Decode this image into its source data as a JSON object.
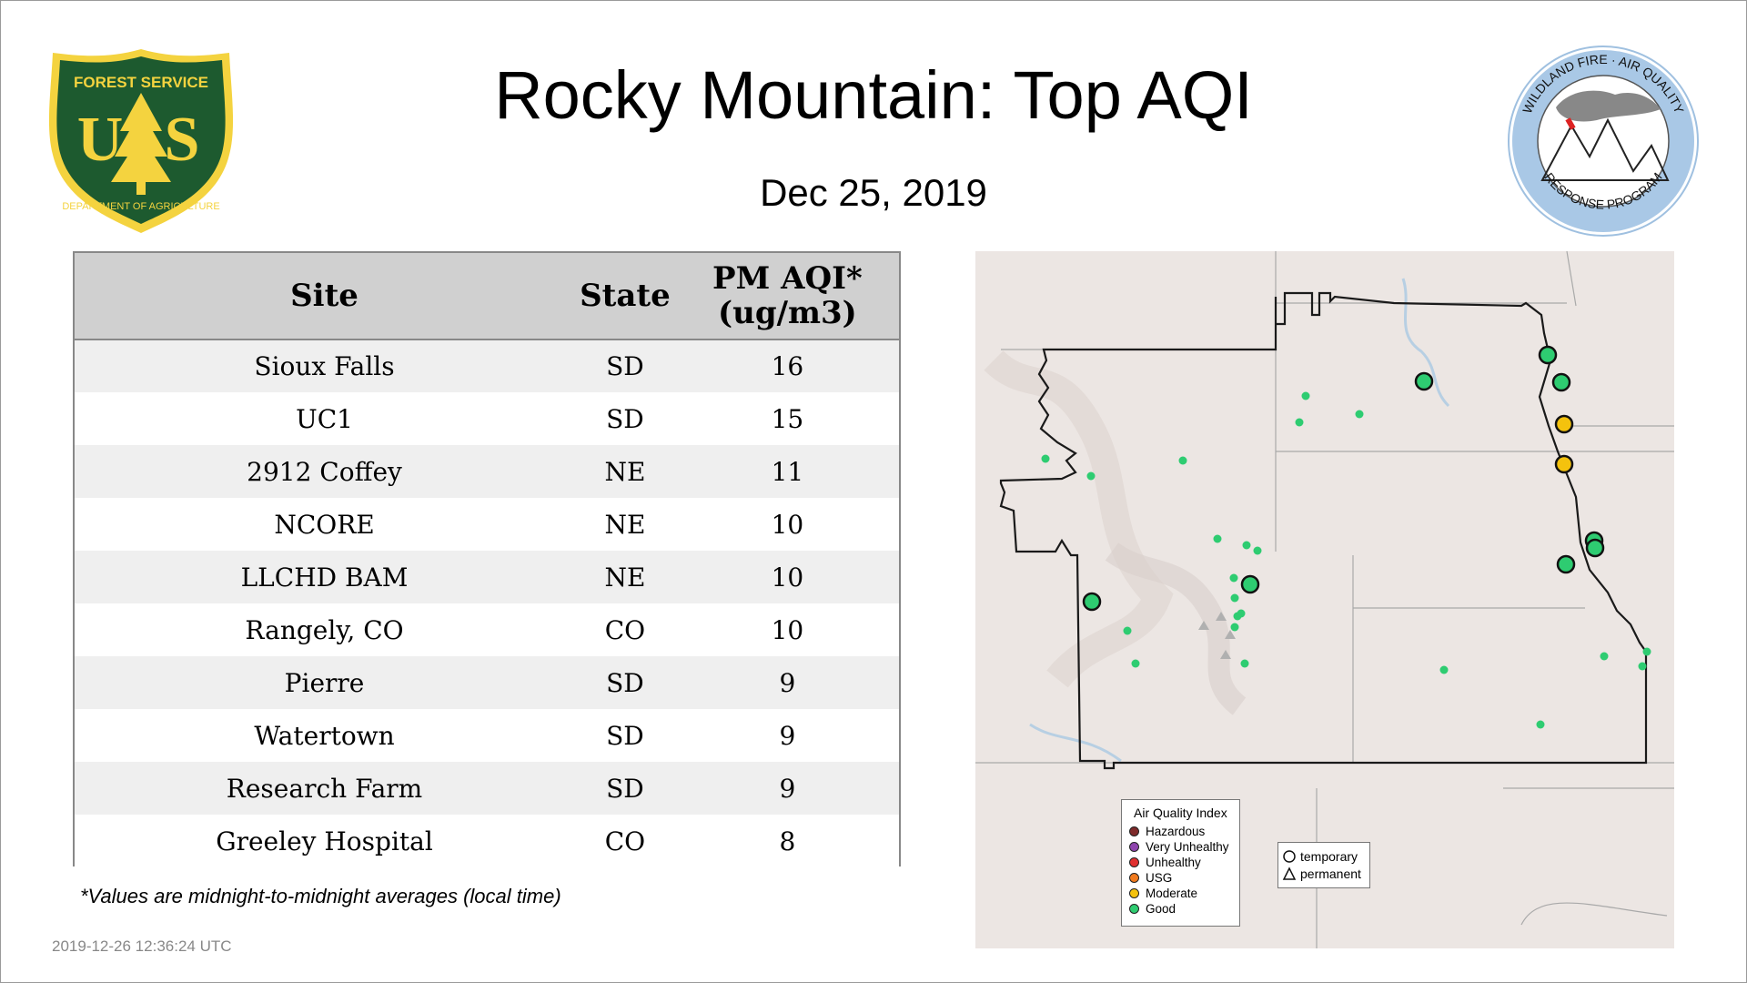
{
  "header": {
    "title": "Rocky Mountain: Top AQI",
    "date": "Dec 25, 2019",
    "left_logo": {
      "name": "forest-service-logo",
      "text_top": "FOREST SERVICE",
      "text_main": "US",
      "text_bottom": "DEPARTMENT OF AGRICULTURE"
    },
    "right_logo": {
      "name": "wildland-fire-air-quality-logo",
      "text_top": "WILDLAND FIRE · AIR QUALITY",
      "text_bottom": "RESPONSE PROGRAM"
    }
  },
  "table": {
    "headers": {
      "site": "Site",
      "state": "State",
      "aqi_line1": "PM AQI*",
      "aqi_line2": "(ug/m3)"
    },
    "rows": [
      {
        "site": "Sioux Falls",
        "state": "SD",
        "aqi": "16"
      },
      {
        "site": "UC1",
        "state": "SD",
        "aqi": "15"
      },
      {
        "site": "2912 Coffey",
        "state": "NE",
        "aqi": "11"
      },
      {
        "site": "NCORE",
        "state": "NE",
        "aqi": "10"
      },
      {
        "site": "LLCHD BAM",
        "state": "NE",
        "aqi": "10"
      },
      {
        "site": "Rangely, CO",
        "state": "CO",
        "aqi": "10"
      },
      {
        "site": "Pierre",
        "state": "SD",
        "aqi": "9"
      },
      {
        "site": "Watertown",
        "state": "SD",
        "aqi": "9"
      },
      {
        "site": "Research Farm",
        "state": "SD",
        "aqi": "9"
      },
      {
        "site": "Greeley Hospital",
        "state": "CO",
        "aqi": "8"
      }
    ]
  },
  "footnote": "*Values are midnight-to-midnight averages (local time)",
  "timestamp": "2019-12-26 12:36:24 UTC",
  "map": {
    "legend": {
      "title": "Air Quality Index",
      "items": [
        {
          "label": "Hazardous",
          "color": "#7e2a2a"
        },
        {
          "label": "Very Unhealthy",
          "color": "#8e44ad"
        },
        {
          "label": "Unhealthy",
          "color": "#e03030"
        },
        {
          "label": "USG",
          "color": "#f07a1e"
        },
        {
          "label": "Moderate",
          "color": "#f4c20d"
        },
        {
          "label": "Good",
          "color": "#2ecc71"
        }
      ]
    },
    "monitor_legend": {
      "temporary": "temporary",
      "permanent": "permanent"
    },
    "colors": {
      "good": "#2ecc71",
      "moderate": "#f4c20d",
      "land": "#ece6e3",
      "border": "#1a1a1a"
    }
  }
}
